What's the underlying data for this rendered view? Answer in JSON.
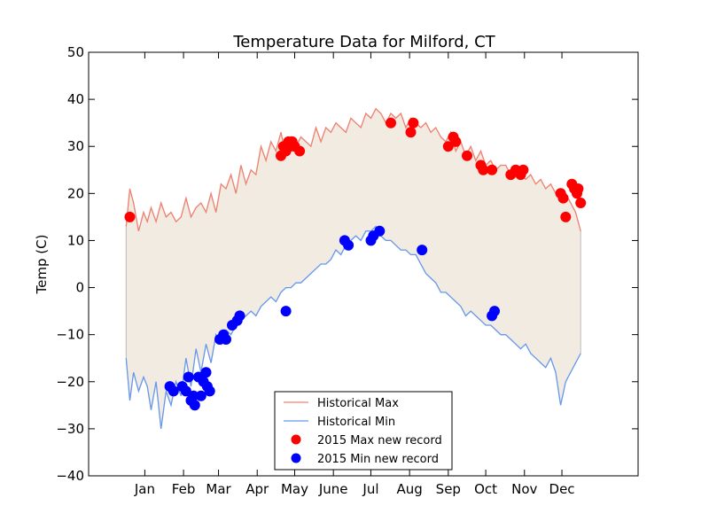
{
  "chart_data": {
    "type": "line",
    "title": "Temperature Data for Milford, CT",
    "xlabel": "",
    "ylabel": "Temp (C)",
    "ylim": [
      -40,
      50
    ],
    "xlim": [
      -30,
      410
    ],
    "yticks": [
      -40,
      -30,
      -20,
      -10,
      0,
      10,
      20,
      30,
      40,
      50
    ],
    "xticks": [
      {
        "label": "Jan",
        "day": 15
      },
      {
        "label": "Feb",
        "day": 46
      },
      {
        "label": "Mar",
        "day": 74
      },
      {
        "label": "Apr",
        "day": 105
      },
      {
        "label": "May",
        "day": 135
      },
      {
        "label": "June",
        "day": 166
      },
      {
        "label": "Jul",
        "day": 196
      },
      {
        "label": "Aug",
        "day": 227
      },
      {
        "label": "Sep",
        "day": 258
      },
      {
        "label": "Oct",
        "day": 288
      },
      {
        "label": "Nov",
        "day": 319
      },
      {
        "label": "Dec",
        "day": 349
      }
    ],
    "grid": false,
    "legend_position": "lower-center",
    "fill_color": "#f2ebe1",
    "series": [
      {
        "name": "Historical Max",
        "kind": "line",
        "color": "#f08070",
        "x": [
          0,
          3,
          6,
          10,
          14,
          17,
          20,
          24,
          28,
          32,
          36,
          40,
          44,
          48,
          52,
          56,
          60,
          64,
          68,
          72,
          76,
          80,
          84,
          88,
          92,
          96,
          100,
          104,
          108,
          112,
          116,
          120,
          124,
          128,
          132,
          136,
          140,
          144,
          148,
          152,
          156,
          160,
          164,
          168,
          172,
          176,
          180,
          184,
          188,
          192,
          196,
          200,
          204,
          208,
          212,
          216,
          220,
          224,
          228,
          232,
          236,
          240,
          244,
          248,
          252,
          256,
          260,
          264,
          268,
          272,
          276,
          280,
          284,
          288,
          292,
          296,
          300,
          304,
          308,
          312,
          316,
          320,
          324,
          328,
          332,
          336,
          340,
          344,
          348,
          352,
          356,
          360,
          364
        ],
        "values": [
          13,
          21,
          18,
          12,
          16,
          14,
          17,
          14,
          18,
          15,
          16,
          14,
          15,
          19,
          15,
          17,
          18,
          16,
          20,
          16,
          22,
          21,
          24,
          20,
          26,
          22,
          25,
          24,
          30,
          27,
          31,
          29,
          33,
          28,
          32,
          30,
          32,
          31,
          30,
          34,
          31,
          34,
          33,
          35,
          34,
          33,
          36,
          35,
          34,
          37,
          36,
          38,
          37,
          35,
          37,
          36,
          37,
          34,
          36,
          35,
          34,
          35,
          33,
          34,
          32,
          31,
          33,
          29,
          31,
          28,
          30,
          27,
          29,
          26,
          27,
          25,
          26,
          26,
          24,
          25,
          24,
          23,
          24,
          22,
          23,
          21,
          22,
          20,
          19,
          20,
          18,
          16,
          12
        ]
      },
      {
        "name": "Historical Min",
        "kind": "line",
        "color": "#6699ee",
        "x": [
          0,
          3,
          6,
          10,
          14,
          17,
          20,
          24,
          28,
          32,
          36,
          40,
          44,
          48,
          52,
          56,
          60,
          64,
          68,
          72,
          76,
          80,
          84,
          88,
          92,
          96,
          100,
          104,
          108,
          112,
          116,
          120,
          124,
          128,
          132,
          136,
          140,
          144,
          148,
          152,
          156,
          160,
          164,
          168,
          172,
          176,
          180,
          184,
          188,
          192,
          196,
          200,
          204,
          208,
          212,
          216,
          220,
          224,
          228,
          232,
          236,
          240,
          244,
          248,
          252,
          256,
          260,
          264,
          268,
          272,
          276,
          280,
          284,
          288,
          292,
          296,
          300,
          304,
          308,
          312,
          316,
          320,
          324,
          328,
          332,
          336,
          340,
          344,
          348,
          352,
          356,
          360,
          364
        ],
        "values": [
          -15,
          -24,
          -18,
          -22,
          -19,
          -21,
          -26,
          -20,
          -30,
          -22,
          -25,
          -20,
          -23,
          -15,
          -21,
          -13,
          -18,
          -12,
          -16,
          -10,
          -12,
          -9,
          -10,
          -8,
          -7,
          -6,
          -5,
          -6,
          -4,
          -3,
          -2,
          -3,
          -1,
          0,
          0,
          1,
          1,
          2,
          3,
          4,
          5,
          5,
          6,
          8,
          7,
          9,
          10,
          11,
          10,
          12,
          12,
          13,
          11,
          10,
          10,
          9,
          8,
          8,
          7,
          7,
          5,
          3,
          2,
          1,
          -1,
          -1,
          -2,
          -3,
          -4,
          -6,
          -5,
          -6,
          -7,
          -8,
          -8,
          -9,
          -10,
          -10,
          -11,
          -12,
          -13,
          -12,
          -14,
          -15,
          -16,
          -17,
          -15,
          -18,
          -25,
          -20,
          -18,
          -16,
          -14
        ]
      },
      {
        "name": "2015 Max new record",
        "kind": "scatter",
        "color": "#ff0000",
        "x": [
          3,
          124,
          126,
          128,
          130,
          131,
          133,
          135,
          139,
          212,
          228,
          230,
          258,
          262,
          264,
          273,
          284,
          286,
          293,
          308,
          312,
          316,
          318,
          348,
          350,
          352,
          357,
          359,
          361,
          362,
          364
        ],
        "values": [
          15,
          28,
          30,
          29,
          31,
          30,
          31,
          30,
          29,
          35,
          33,
          35,
          30,
          32,
          31,
          28,
          26,
          25,
          25,
          24,
          25,
          24,
          25,
          20,
          19,
          15,
          22,
          21,
          20,
          21,
          18
        ]
      },
      {
        "name": "2015 Min new record",
        "kind": "scatter",
        "color": "#0000ff",
        "x": [
          35,
          38,
          45,
          48,
          50,
          52,
          54,
          55,
          58,
          60,
          62,
          64,
          65,
          67,
          75,
          78,
          80,
          85,
          89,
          91,
          128,
          175,
          178,
          196,
          198,
          203,
          237,
          293,
          295
        ],
        "values": [
          -21,
          -22,
          -21,
          -22,
          -19,
          -24,
          -23,
          -25,
          -19,
          -23,
          -20,
          -18,
          -21,
          -22,
          -11,
          -10,
          -11,
          -8,
          -7,
          -6,
          -5,
          10,
          9,
          10,
          11,
          12,
          8,
          -6,
          -5
        ]
      }
    ]
  }
}
